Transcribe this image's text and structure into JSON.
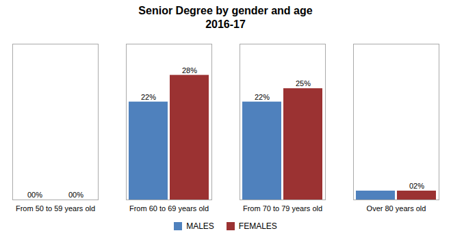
{
  "chart_data": {
    "type": "bar",
    "title": "Senior Degree by gender and age",
    "subtitle": "2016-17",
    "categories": [
      "From 50 to 59 years old",
      "From 60 to 69 years old",
      "From 70 to 79 years old",
      "Over 80 years old"
    ],
    "series": [
      {
        "name": "MALES",
        "color": "#4F81BD",
        "values": [
          0,
          22,
          22,
          2
        ],
        "value_labels": [
          "00%",
          "22%",
          "22%",
          null
        ]
      },
      {
        "name": "FEMALES",
        "color": "#9B3232",
        "values": [
          0,
          28,
          25,
          2
        ],
        "value_labels": [
          "00%",
          "28%",
          "25%",
          "02%"
        ]
      }
    ],
    "ylim": [
      0,
      35
    ],
    "data_labels": true,
    "tick_labels": "x",
    "grid": false,
    "legend": "bottom"
  }
}
